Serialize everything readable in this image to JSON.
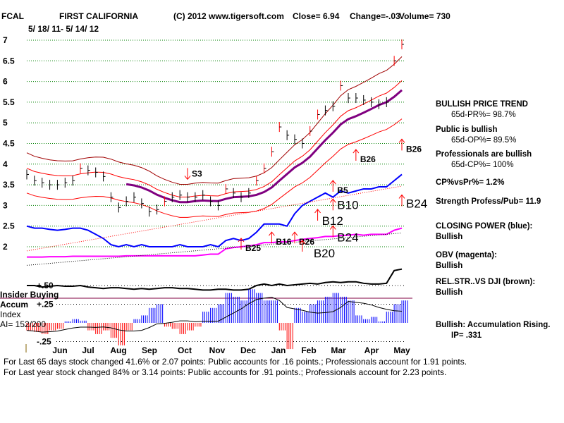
{
  "header": {
    "ticker": "FCAL",
    "company": "FIRST CALIFORNIA",
    "copyright": "(C) 2012 www.tigersoft.com",
    "close": "Close=  6.94",
    "change": "Change=-.03",
    "volume": "Volume= 730",
    "date_range": "5/ 18/ 11- 5/ 14/ 12"
  },
  "side": {
    "trend": "BULLISH PRICE TREND",
    "pr": "65d-PR%= 98.7%",
    "public": "Public is bullish",
    "op": "65d-OP%= 89.5%",
    "pros": "Professionals are bullish",
    "cp": "65d-CP%= 100%",
    "cpvspr": "CP%vsPr%=  1.2%",
    "strength": "Strength Profess/Pub= 11.9",
    "closing_power": "CLOSING POWER (blue):",
    "closing_power_v": "Bullish",
    "obv": "OBV (magenta):",
    "obv_v": "Bullish",
    "relstr": "REL.STR..VS DJI (brown):",
    "relstr_v": "Bullish",
    "accum": "Bullish: Accumulation Rising.",
    "ip": "IP=  .331"
  },
  "lower": {
    "insider": "Insider Buying",
    "accum": "Accum",
    "index": "Index",
    "ai": "AI= 152/200"
  },
  "footer": {
    "line1": "For Last 65 days stock changed  41.6% or  2.07 points:  Public accounts for  .16 points.;  Professionals account for  1.91 points.",
    "line2": "For Last year stock changed  84% or  3.14 points:  Public accounts for  .91 points.;  Professionals account for  2.23 points."
  },
  "chart_data": {
    "type": "line",
    "title": "FCAL FIRST CALIFORNIA",
    "x_ticks": [
      "Jun",
      "Jul",
      "Aug",
      "Sep",
      "Oct",
      "Nov",
      "Dec",
      "Jan",
      "Feb",
      "Mar",
      "Apr",
      "May"
    ],
    "y_ticks": [
      "7",
      "6.5",
      "6",
      "5.5",
      "5",
      "4.5",
      "4",
      "3.5",
      "3",
      "2.5",
      "2"
    ],
    "ylim": [
      2,
      7
    ],
    "ai_ticks": [
      "+.50",
      "+.25",
      "-.25"
    ],
    "series": [
      {
        "name": "price",
        "color": "#000000",
        "values": [
          3.75,
          3.6,
          3.55,
          3.5,
          3.5,
          3.55,
          3.6,
          3.9,
          3.85,
          3.8,
          3.7,
          3.2,
          2.95,
          3.1,
          3.2,
          3.05,
          2.85,
          2.9,
          3.1,
          3.2,
          3.25,
          3.2,
          3.2,
          3.25,
          3.1,
          3.0,
          3.4,
          3.3,
          3.2,
          3.3,
          3.6,
          3.9,
          4.3,
          4.9,
          4.7,
          4.6,
          4.5,
          4.8,
          5.2,
          5.3,
          5.4,
          5.9,
          5.6,
          5.6,
          5.55,
          5.5,
          5.45,
          5.5,
          6.5,
          6.9
        ]
      },
      {
        "name": "closing power (blue)",
        "color": "#0000ff",
        "values": [
          2.5,
          2.45,
          2.45,
          2.42,
          2.4,
          2.42,
          2.45,
          2.45,
          2.4,
          2.3,
          2.2,
          2.05,
          2.0,
          2.05,
          2.0,
          2.05,
          2.0,
          2.0,
          2.0,
          2.0,
          2.05,
          2.0,
          2.0,
          2.0,
          2.05,
          2.0,
          2.15,
          2.2,
          2.15,
          2.2,
          2.35,
          2.55,
          2.55,
          2.55,
          2.5,
          2.8,
          3.0,
          3.1,
          3.2,
          3.3,
          3.2,
          3.35,
          3.3,
          3.35,
          3.4,
          3.4,
          3.45,
          3.45,
          3.6,
          3.75
        ]
      },
      {
        "name": "OBV (magenta)",
        "color": "#ff00ff",
        "values": [
          1.75,
          1.75,
          1.75,
          1.76,
          1.76,
          1.76,
          1.77,
          1.77,
          1.77,
          1.77,
          1.77,
          1.77,
          1.77,
          1.78,
          1.78,
          1.78,
          1.78,
          1.78,
          1.78,
          1.78,
          1.78,
          1.78,
          1.78,
          1.8,
          1.82,
          1.82,
          1.95,
          1.98,
          2.0,
          2.02,
          2.05,
          2.1,
          2.1,
          2.12,
          2.12,
          2.15,
          2.18,
          2.2,
          2.22,
          2.25,
          2.25,
          2.27,
          2.28,
          2.3,
          2.28,
          2.3,
          2.3,
          2.3,
          2.4,
          2.45
        ]
      },
      {
        "name": "REL.STR vs DJI",
        "color": "#000000",
        "values": [
          0.5,
          0.5,
          0.48,
          0.49,
          0.5,
          0.49,
          0.49,
          0.5,
          0.48,
          0.47,
          0.46,
          0.47,
          0.47,
          0.46,
          0.45,
          0.46,
          0.45,
          0.46,
          0.47,
          0.47,
          0.46,
          0.46,
          0.45,
          0.44,
          0.44,
          0.45,
          0.45,
          0.44,
          0.44,
          0.45,
          0.5,
          0.52,
          0.5,
          0.52,
          0.5,
          0.51,
          0.52,
          0.53,
          0.52,
          0.54,
          0.55,
          0.54,
          0.55,
          0.55,
          0.53,
          0.52,
          0.52,
          0.53,
          0.7,
          0.72
        ]
      },
      {
        "name": "Accumulation Index",
        "values": [
          -0.1,
          -0.12,
          -0.15,
          -0.1,
          -0.08,
          0.02,
          0.05,
          0.03,
          -0.1,
          -0.15,
          -0.1,
          -0.2,
          -0.3,
          -0.1,
          0.05,
          0.1,
          0.2,
          0.25,
          -0.05,
          -0.08,
          -0.15,
          -0.1,
          -0.05,
          0.15,
          0.2,
          0.25,
          0.4,
          0.35,
          0.3,
          0.45,
          0.4,
          0.3,
          0.3,
          -0.1,
          -0.35,
          0.2,
          0.15,
          0.25,
          0.3,
          0.35,
          0.4,
          0.35,
          0.3,
          0.1,
          0.05,
          0.08,
          0.02,
          0.15,
          0.25,
          0.3
        ]
      }
    ],
    "signals": [
      {
        "label": "S3",
        "week": 21,
        "price": 3.7,
        "dir": "down"
      },
      {
        "label": "B25",
        "week": 28,
        "price": 2.0,
        "dir": "up"
      },
      {
        "label": "B16",
        "week": 32,
        "price": 2.15,
        "dir": "up"
      },
      {
        "label": "B26",
        "week": 35,
        "price": 2.15,
        "dir": "up"
      },
      {
        "label": "B20",
        "week": 36,
        "price": 1.95,
        "dir": "up"
      },
      {
        "label": "B12",
        "week": 38,
        "price": 2.7,
        "dir": "up"
      },
      {
        "label": "B10",
        "week": 40,
        "price": 2.95,
        "dir": "up"
      },
      {
        "label": "B5",
        "week": 40,
        "price": 3.4,
        "dir": "up"
      },
      {
        "label": "B24",
        "week": 40,
        "price": 2.3,
        "dir": "up"
      },
      {
        "label": "B26",
        "week": 43,
        "price": 4.15,
        "dir": "up"
      },
      {
        "label": "B24",
        "week": 49,
        "price": 3.05,
        "dir": "up"
      },
      {
        "label": "B26",
        "week": 49,
        "price": 4.4,
        "dir": "up"
      }
    ]
  }
}
